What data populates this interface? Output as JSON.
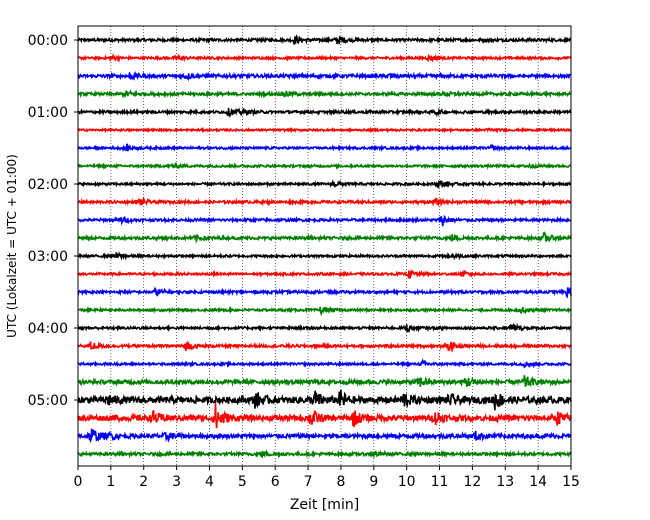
{
  "chart_data": {
    "type": "line",
    "title": "",
    "xlabel": "Zeit  [min]",
    "ylabel": "UTC (Lokalzeit = UTC + 01:00)",
    "xlim": [
      0,
      15
    ],
    "x_ticks": [
      0,
      1,
      2,
      3,
      4,
      5,
      6,
      7,
      8,
      9,
      10,
      11,
      12,
      13,
      14,
      15
    ],
    "y_tick_labels": [
      "00:00",
      "01:00",
      "02:00",
      "03:00",
      "04:00",
      "05:00"
    ],
    "y_tick_rows": [
      0,
      4,
      8,
      12,
      16,
      20
    ],
    "grid": "vertical dotted lines at each minute",
    "colors": [
      "#000000",
      "#ff0000",
      "#0000ff",
      "#008000"
    ],
    "rows": [
      {
        "start": "00:00",
        "color": "#000000",
        "level": 0.15,
        "events": [
          {
            "t": 6.6,
            "a": 0.35
          },
          {
            "t": 7.9,
            "a": 0.45
          }
        ]
      },
      {
        "start": "00:15",
        "color": "#ff0000",
        "level": 0.12,
        "events": [
          {
            "t": 1.0,
            "a": 0.25
          },
          {
            "t": 3.0,
            "a": 0.2
          },
          {
            "t": 10.7,
            "a": 0.3
          }
        ]
      },
      {
        "start": "00:30",
        "color": "#0000ff",
        "level": 0.18,
        "events": [
          {
            "t": 1.6,
            "a": 0.3
          },
          {
            "t": 3.3,
            "a": 0.25
          },
          {
            "t": 9.5,
            "a": 0.25
          }
        ]
      },
      {
        "start": "00:45",
        "color": "#008000",
        "level": 0.15,
        "events": [
          {
            "t": 1.5,
            "a": 0.3
          },
          {
            "t": 6.3,
            "a": 0.3
          },
          {
            "t": 11.2,
            "a": 0.2
          }
        ]
      },
      {
        "start": "01:00",
        "color": "#000000",
        "level": 0.14,
        "events": [
          {
            "t": 4.6,
            "a": 0.35
          },
          {
            "t": 5.0,
            "a": 0.3
          },
          {
            "t": 10.9,
            "a": 0.2
          }
        ]
      },
      {
        "start": "01:15",
        "color": "#ff0000",
        "level": 0.1,
        "events": [
          {
            "t": 12.5,
            "a": 0.15
          }
        ]
      },
      {
        "start": "01:30",
        "color": "#0000ff",
        "level": 0.12,
        "events": [
          {
            "t": 1.5,
            "a": 0.3
          },
          {
            "t": 12.6,
            "a": 0.2
          }
        ]
      },
      {
        "start": "01:45",
        "color": "#008000",
        "level": 0.12,
        "events": [
          {
            "t": 2.9,
            "a": 0.25
          },
          {
            "t": 13.7,
            "a": 0.2
          }
        ]
      },
      {
        "start": "02:00",
        "color": "#000000",
        "level": 0.12,
        "events": [
          {
            "t": 7.8,
            "a": 0.25
          },
          {
            "t": 11.0,
            "a": 0.45
          }
        ]
      },
      {
        "start": "02:15",
        "color": "#ff0000",
        "level": 0.14,
        "events": [
          {
            "t": 1.9,
            "a": 0.35
          },
          {
            "t": 10.9,
            "a": 0.25
          }
        ]
      },
      {
        "start": "02:30",
        "color": "#0000ff",
        "level": 0.14,
        "events": [
          {
            "t": 1.3,
            "a": 0.35
          },
          {
            "t": 11.1,
            "a": 0.55
          }
        ]
      },
      {
        "start": "02:45",
        "color": "#008000",
        "level": 0.15,
        "events": [
          {
            "t": 3.6,
            "a": 0.3
          },
          {
            "t": 11.4,
            "a": 0.35
          },
          {
            "t": 14.2,
            "a": 0.45
          }
        ]
      },
      {
        "start": "03:00",
        "color": "#000000",
        "level": 0.12,
        "events": [
          {
            "t": 1.2,
            "a": 0.25
          },
          {
            "t": 11.4,
            "a": 0.3
          }
        ]
      },
      {
        "start": "03:15",
        "color": "#ff0000",
        "level": 0.12,
        "events": [
          {
            "t": 10.1,
            "a": 0.35
          },
          {
            "t": 11.7,
            "a": 0.25
          }
        ]
      },
      {
        "start": "03:30",
        "color": "#0000ff",
        "level": 0.14,
        "events": [
          {
            "t": 2.4,
            "a": 0.35
          },
          {
            "t": 14.9,
            "a": 0.5
          }
        ]
      },
      {
        "start": "03:45",
        "color": "#008000",
        "level": 0.12,
        "events": [
          {
            "t": 7.4,
            "a": 0.35
          },
          {
            "t": 13.5,
            "a": 0.25
          }
        ]
      },
      {
        "start": "04:00",
        "color": "#000000",
        "level": 0.13,
        "events": [
          {
            "t": 10.0,
            "a": 0.4
          },
          {
            "t": 13.2,
            "a": 0.45
          }
        ]
      },
      {
        "start": "04:15",
        "color": "#ff0000",
        "level": 0.14,
        "events": [
          {
            "t": 0.4,
            "a": 0.45
          },
          {
            "t": 3.3,
            "a": 0.45
          },
          {
            "t": 11.3,
            "a": 0.55
          }
        ]
      },
      {
        "start": "04:30",
        "color": "#0000ff",
        "level": 0.12,
        "events": [
          {
            "t": 10.5,
            "a": 0.3
          },
          {
            "t": 13.6,
            "a": 0.25
          }
        ]
      },
      {
        "start": "04:45",
        "color": "#008000",
        "level": 0.22,
        "events": [
          {
            "t": 10.4,
            "a": 0.5
          },
          {
            "t": 11.8,
            "a": 0.6
          },
          {
            "t": 13.6,
            "a": 0.6
          }
        ]
      },
      {
        "start": "05:00",
        "color": "#000000",
        "level": 0.35,
        "events": [
          {
            "t": 0.9,
            "a": 0.5
          },
          {
            "t": 5.4,
            "a": 0.7
          },
          {
            "t": 7.2,
            "a": 0.9
          },
          {
            "t": 8.0,
            "a": 0.8
          },
          {
            "t": 9.9,
            "a": 0.75
          },
          {
            "t": 11.3,
            "a": 0.55
          },
          {
            "t": 12.7,
            "a": 0.95
          }
        ]
      },
      {
        "start": "05:15",
        "color": "#ff0000",
        "level": 0.3,
        "events": [
          {
            "t": 2.3,
            "a": 0.6
          },
          {
            "t": 4.2,
            "a": 1.6
          },
          {
            "t": 7.1,
            "a": 0.9
          },
          {
            "t": 8.4,
            "a": 0.75
          },
          {
            "t": 10.9,
            "a": 0.6
          },
          {
            "t": 14.6,
            "a": 0.6
          }
        ]
      },
      {
        "start": "05:30",
        "color": "#0000ff",
        "level": 0.22,
        "events": [
          {
            "t": 0.4,
            "a": 0.9
          },
          {
            "t": 1.0,
            "a": 0.35
          },
          {
            "t": 2.7,
            "a": 0.4
          },
          {
            "t": 12.1,
            "a": 0.4
          }
        ]
      },
      {
        "start": "05:45",
        "color": "#008000",
        "level": 0.15,
        "events": [
          {
            "t": 5.6,
            "a": 0.25
          },
          {
            "t": 9.0,
            "a": 0.25
          }
        ]
      }
    ]
  }
}
